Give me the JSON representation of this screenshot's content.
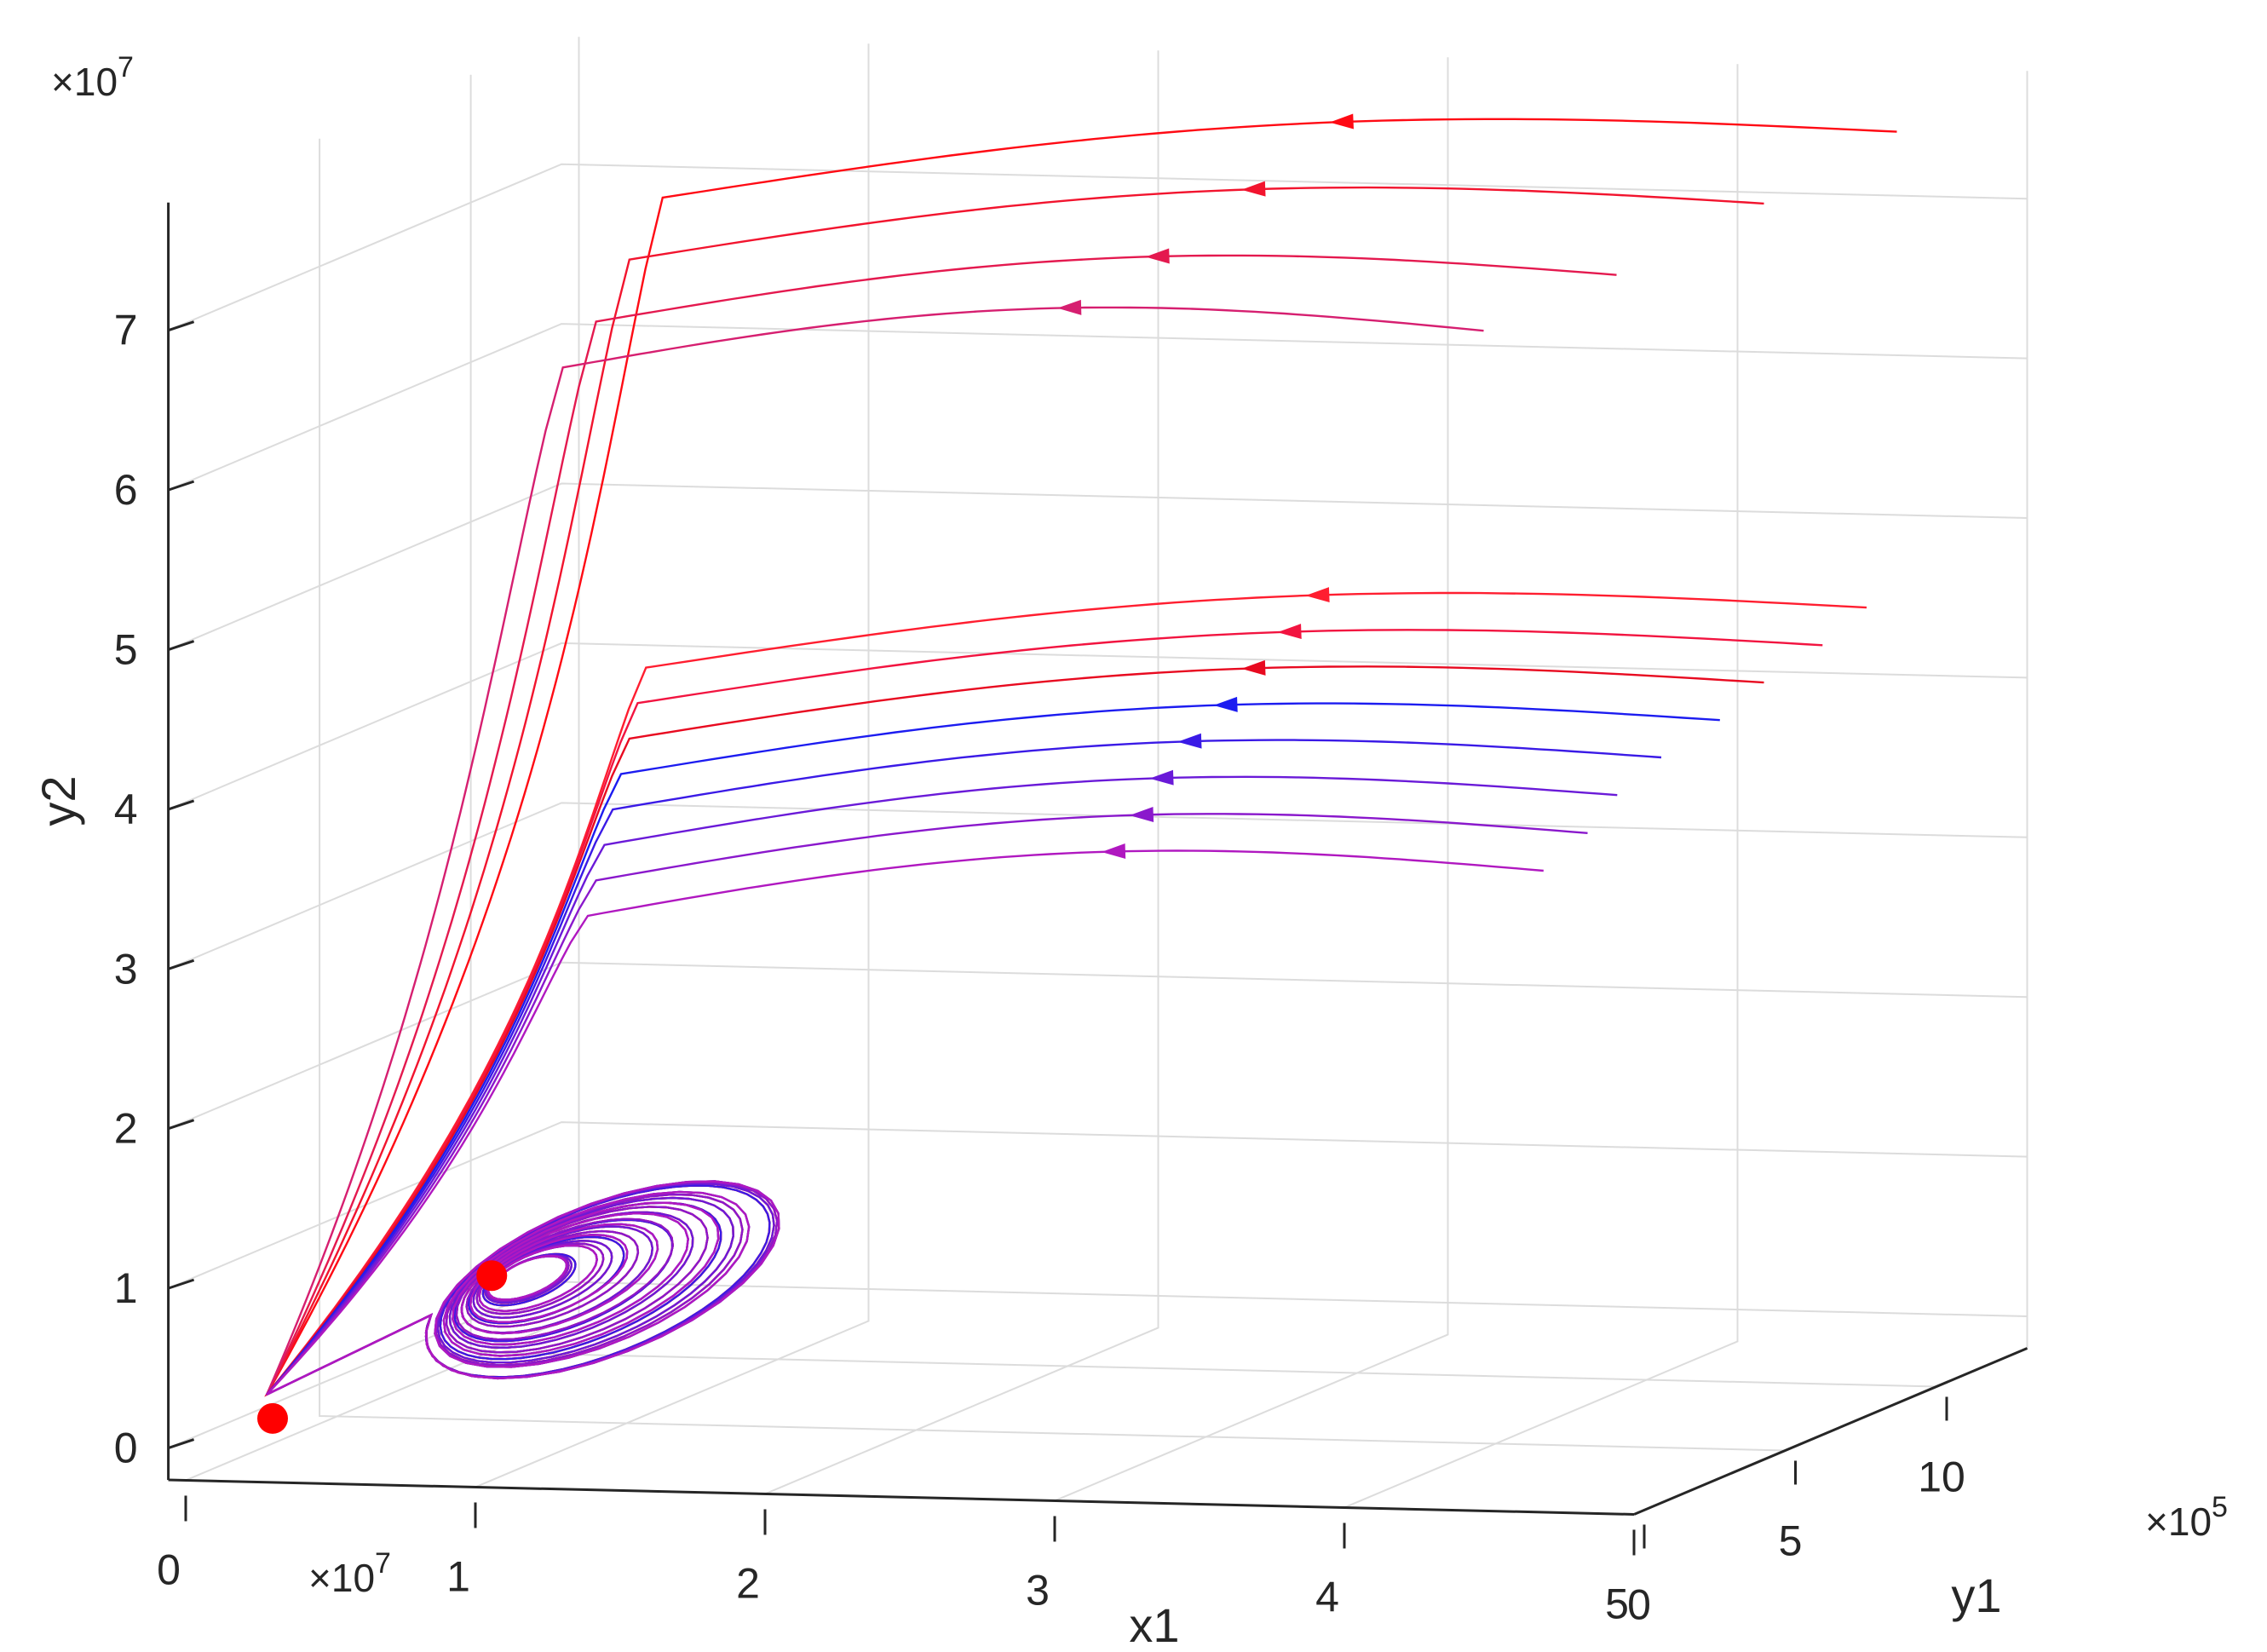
{
  "chart_data": {
    "type": "line",
    "subtype": "3d-phase-portrait",
    "title": "",
    "axes": {
      "x": {
        "label": "x1",
        "multiplier": "×10",
        "exponent": "7",
        "ticks": [
          0,
          1,
          2,
          3,
          4,
          5
        ],
        "tick_labels": [
          "0",
          "1",
          "2",
          "3",
          "4",
          "5"
        ],
        "lim": [
          0,
          5
        ]
      },
      "y": {
        "label": "y1",
        "multiplier": "×10",
        "exponent": "5",
        "ticks": [
          0,
          5,
          10
        ],
        "tick_labels": [
          "0",
          "5",
          "10"
        ],
        "lim": [
          0,
          13
        ]
      },
      "z": {
        "label": "y2",
        "multiplier": "×10",
        "exponent": "7",
        "ticks": [
          0,
          1,
          2,
          3,
          4,
          5,
          6,
          7
        ],
        "tick_labels": [
          "0",
          "1",
          "2",
          "3",
          "4",
          "5",
          "6",
          "7"
        ],
        "lim": [
          -0.2,
          7.8
        ]
      }
    },
    "grid": true,
    "equilibria": [
      {
        "name": "origin-equilibrium",
        "x1": 0.3,
        "y1": 0,
        "y2": 0.2,
        "color": "#ff0000"
      },
      {
        "name": "interior-equilibrium",
        "x1": 0.9,
        "y1": 1.5,
        "y2": 1.0,
        "color": "#ff0000"
      }
    ],
    "series": [
      {
        "name": "trajectory-1",
        "color": "#ff0a14",
        "start": {
          "x1": 4.55,
          "y1": 13.0,
          "y2": 7.4
        }
      },
      {
        "name": "trajectory-2",
        "color": "#f2142e",
        "start": {
          "x1": 4.3,
          "y1": 11.0,
          "y2": 7.1
        }
      },
      {
        "name": "trajectory-3",
        "color": "#e4194f",
        "start": {
          "x1": 4.0,
          "y1": 9.0,
          "y2": 6.8
        }
      },
      {
        "name": "trajectory-4",
        "color": "#d61f70",
        "start": {
          "x1": 3.75,
          "y1": 7.0,
          "y2": 6.6
        }
      },
      {
        "name": "trajectory-5",
        "color": "#ff1e30",
        "start": {
          "x1": 4.55,
          "y1": 12.0,
          "y2": 4.5
        }
      },
      {
        "name": "trajectory-6",
        "color": "#f21440",
        "start": {
          "x1": 4.45,
          "y1": 11.5,
          "y2": 4.3
        }
      },
      {
        "name": "trajectory-7",
        "color": "#e80a20",
        "start": {
          "x1": 4.3,
          "y1": 11.0,
          "y2": 4.1
        }
      },
      {
        "name": "trajectory-8",
        "color": "#1c1cf0",
        "start": {
          "x1": 4.2,
          "y1": 10.5,
          "y2": 3.9
        }
      },
      {
        "name": "trajectory-9",
        "color": "#3a1ae6",
        "start": {
          "x1": 4.05,
          "y1": 10.0,
          "y2": 3.7
        }
      },
      {
        "name": "trajectory-10",
        "color": "#6a1ad8",
        "start": {
          "x1": 3.95,
          "y1": 9.5,
          "y2": 3.5
        }
      },
      {
        "name": "trajectory-11",
        "color": "#8a18cc",
        "start": {
          "x1": 3.9,
          "y1": 9.0,
          "y2": 3.3
        }
      },
      {
        "name": "trajectory-12",
        "color": "#b018c0",
        "start": {
          "x1": 3.8,
          "y1": 8.5,
          "y2": 3.1
        }
      }
    ]
  }
}
